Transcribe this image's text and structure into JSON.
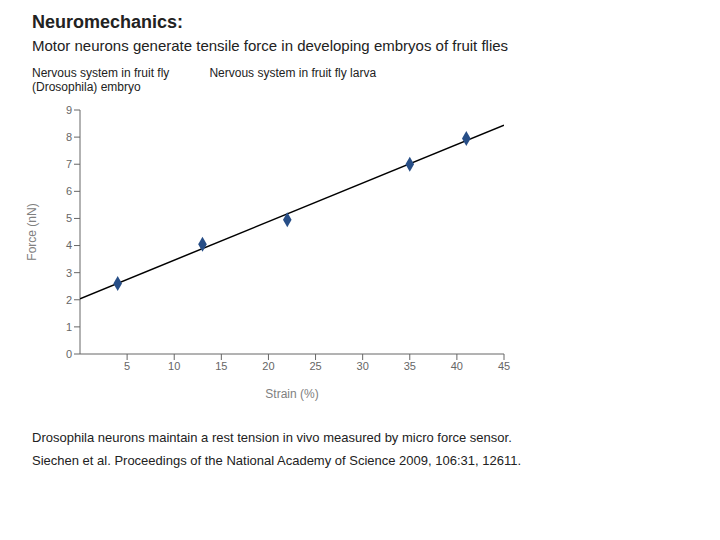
{
  "chart_data": {
    "type": "scatter",
    "title": "Neuromechanics:",
    "subtitle": "Motor neurons generate tensile force in developing embryos of fruit flies",
    "xlabel": "Strain (%)",
    "ylabel": "Force (nN)",
    "xlim": [
      0,
      45
    ],
    "ylim": [
      0,
      9
    ],
    "xticks": [
      5,
      10,
      15,
      20,
      25,
      30,
      35,
      40,
      45
    ],
    "yticks": [
      0,
      1,
      2,
      3,
      4,
      5,
      6,
      7,
      8,
      9
    ],
    "series": [
      {
        "type": "line",
        "color": "#000000",
        "x": [
          0,
          45
        ],
        "values": [
          2.03930108,
          8.43849463
        ]
      },
      {
        "type": "scatter",
        "color": "#274e87",
        "marker": "diamond",
        "x": [
          4,
          13,
          22,
          35,
          41
        ],
        "values": [
          2.6,
          4.05,
          4.95,
          7.0,
          7.95
        ]
      }
    ],
    "annotations": [
      "Nervous system in fruit fly\n(Drosophila) embryo",
      "Nervous system in fruit fly larva",
      "Drosophila neurons maintain a rest tension in vivo measured by micro force sensor.",
      "Siechen et al. Proceedings of the National Academy of Science 2009, 106:31, 12611."
    ]
  }
}
